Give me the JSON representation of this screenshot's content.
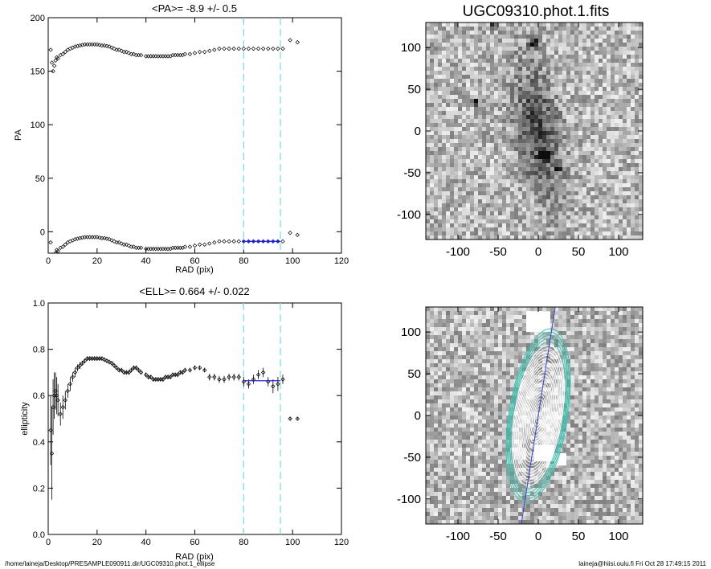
{
  "colors": {
    "marker": "#000000",
    "fit": "#2222cc",
    "dash": "#7fe0e0",
    "ellipse": "#ffffff",
    "ellipse_outer": "#40c0b0",
    "axis_line": "#3344cc"
  },
  "footer": {
    "left": "/home/laineja/Desktop/PRESAMPLE090911.dir/UGC09310.phot.1_ellipse",
    "right": "laineja@hiisi.oulu.fi  Fri Oct 28 17:49:15 2011"
  },
  "chart_data": [
    {
      "type": "scatter",
      "title": "<PA>=  -8.9 +/-   0.5",
      "xlabel": "RAD (pix)",
      "ylabel": "PA",
      "xlim": [
        0,
        120
      ],
      "ylim": [
        -20,
        200
      ],
      "xticks": [
        0,
        20,
        40,
        60,
        80,
        100,
        120
      ],
      "yticks": [
        0,
        50,
        100,
        150,
        200
      ],
      "dashed_x": [
        80,
        95
      ],
      "fit": {
        "x": [
          80,
          95
        ],
        "y": -8.9
      },
      "series": [
        {
          "x": [
            1,
            1.5,
            2,
            2.5,
            3,
            3.5,
            4,
            5,
            6,
            7,
            8,
            9,
            10,
            11,
            12,
            13,
            14,
            15,
            16,
            17,
            18,
            19,
            20,
            21,
            22,
            23,
            24,
            25,
            26,
            27,
            28,
            29,
            30,
            31,
            32,
            33,
            34,
            35,
            36,
            37,
            38,
            40,
            41,
            42,
            43,
            44,
            45,
            46,
            47,
            48,
            49,
            50,
            51,
            52,
            53,
            54,
            55,
            56,
            58,
            60,
            62,
            64,
            66,
            68,
            70,
            72,
            74,
            76,
            78,
            80,
            82,
            84,
            86,
            88,
            90,
            92,
            94,
            96,
            99,
            102
          ],
          "y": [
            170,
            158,
            150,
            155,
            160,
            163,
            162,
            165,
            166,
            168,
            170,
            171,
            172,
            173,
            173.5,
            174,
            174.5,
            175,
            175,
            175,
            175,
            175,
            175,
            174.5,
            174,
            174,
            173.5,
            173,
            172,
            171,
            170,
            170,
            169,
            168,
            168,
            167,
            166,
            166,
            165,
            165,
            165,
            164,
            164,
            164,
            164,
            164,
            164,
            164,
            164,
            164,
            164,
            164,
            165,
            165,
            165,
            165,
            165,
            166,
            166,
            167,
            168,
            168,
            169,
            170,
            171,
            171,
            171,
            171,
            171,
            171,
            171,
            171,
            171,
            171,
            171,
            171,
            171,
            171,
            179,
            177
          ]
        },
        {
          "x": [
            1,
            1.5,
            2,
            2.5,
            3,
            3.5,
            4,
            5,
            6,
            7,
            8,
            9,
            10,
            11,
            12,
            13,
            14,
            15,
            16,
            17,
            18,
            19,
            20,
            21,
            22,
            23,
            24,
            25,
            26,
            27,
            28,
            29,
            30,
            31,
            32,
            33,
            34,
            35,
            36,
            37,
            38,
            40,
            41,
            42,
            43,
            44,
            45,
            46,
            47,
            48,
            49,
            50,
            51,
            52,
            53,
            54,
            55,
            56,
            58,
            60,
            62,
            64,
            66,
            68,
            70,
            72,
            74,
            76,
            78,
            80,
            82,
            84,
            86,
            88,
            90,
            92,
            94,
            96,
            99,
            102
          ],
          "y": [
            -10,
            -22,
            -30,
            -25,
            -20,
            -17,
            -18,
            -15,
            -14,
            -12,
            -10,
            -9,
            -8,
            -7,
            -6.5,
            -6,
            -5.5,
            -5,
            -5,
            -5,
            -5,
            -5,
            -5,
            -5.5,
            -6,
            -6,
            -6.5,
            -7,
            -8,
            -9,
            -10,
            -10,
            -11,
            -12,
            -12,
            -13,
            -14,
            -14,
            -15,
            -15,
            -15,
            -16,
            -16,
            -16,
            -16,
            -16,
            -16,
            -16,
            -16,
            -16,
            -16,
            -16,
            -15,
            -15,
            -15,
            -15,
            -15,
            -14,
            -14,
            -13,
            -12,
            -12,
            -11,
            -10,
            -9,
            -9,
            -9,
            -9,
            -9,
            -9,
            -9,
            -9,
            -9,
            -9,
            -9,
            -9,
            -9,
            -9,
            -1,
            -3
          ]
        }
      ]
    },
    {
      "type": "scatter",
      "title": "<ELL>= 0.664 +/-   0.022",
      "xlabel": "RAD (pix)",
      "ylabel": "ellipticity",
      "xlim": [
        0,
        120
      ],
      "ylim": [
        0,
        1
      ],
      "xticks": [
        0,
        20,
        40,
        60,
        80,
        100,
        120
      ],
      "yticks": [
        0.0,
        0.2,
        0.4,
        0.6,
        0.8,
        1.0
      ],
      "dashed_x": [
        80,
        95
      ],
      "fit": {
        "x": [
          80,
          95
        ],
        "y": 0.664
      },
      "series": [
        {
          "x": [
            1,
            1.5,
            2,
            2.5,
            3,
            3.5,
            4,
            5,
            6,
            7,
            8,
            9,
            10,
            11,
            12,
            13,
            14,
            15,
            16,
            17,
            18,
            19,
            20,
            21,
            22,
            23,
            24,
            25,
            26,
            27,
            28,
            29,
            30,
            31,
            32,
            33,
            34,
            35,
            36,
            37,
            38,
            40,
            41,
            42,
            43,
            44,
            45,
            46,
            47,
            48,
            49,
            50,
            51,
            52,
            53,
            54,
            55,
            56,
            58,
            60,
            62,
            64,
            66,
            68,
            70,
            72,
            74,
            76,
            78,
            80,
            82,
            84,
            86,
            88,
            90,
            92,
            94,
            96,
            99,
            102
          ],
          "y": [
            0.45,
            0.35,
            0.55,
            0.6,
            0.62,
            0.6,
            0.58,
            0.52,
            0.55,
            0.58,
            0.62,
            0.65,
            0.68,
            0.7,
            0.72,
            0.73,
            0.74,
            0.75,
            0.76,
            0.76,
            0.76,
            0.76,
            0.76,
            0.76,
            0.76,
            0.755,
            0.75,
            0.745,
            0.74,
            0.73,
            0.72,
            0.71,
            0.71,
            0.7,
            0.7,
            0.7,
            0.71,
            0.72,
            0.72,
            0.71,
            0.7,
            0.69,
            0.68,
            0.68,
            0.67,
            0.67,
            0.67,
            0.67,
            0.67,
            0.68,
            0.68,
            0.68,
            0.69,
            0.69,
            0.69,
            0.7,
            0.7,
            0.71,
            0.71,
            0.72,
            0.72,
            0.71,
            0.68,
            0.68,
            0.67,
            0.67,
            0.68,
            0.68,
            0.68,
            0.66,
            0.65,
            0.67,
            0.69,
            0.7,
            0.66,
            0.64,
            0.65,
            0.67,
            0.5,
            0.5
          ],
          "err": [
            0.15,
            0.2,
            0.12,
            0.1,
            0.08,
            0.08,
            0.07,
            0.05,
            0.05,
            0.04,
            0.03,
            0.03,
            0.02,
            0.02,
            0.015,
            0.015,
            0.01,
            0.01,
            0.01,
            0.01,
            0.01,
            0.01,
            0.01,
            0.01,
            0.01,
            0.01,
            0.01,
            0.01,
            0.01,
            0.01,
            0.01,
            0.01,
            0.01,
            0.01,
            0.01,
            0.01,
            0.01,
            0.01,
            0.01,
            0.01,
            0.01,
            0.01,
            0.01,
            0.01,
            0.01,
            0.01,
            0.01,
            0.01,
            0.01,
            0.01,
            0.01,
            0.01,
            0.01,
            0.01,
            0.01,
            0.01,
            0.01,
            0.01,
            0.01,
            0.01,
            0.01,
            0.01,
            0.015,
            0.015,
            0.015,
            0.015,
            0.015,
            0.015,
            0.015,
            0.02,
            0.02,
            0.02,
            0.02,
            0.02,
            0.02,
            0.03,
            0.03,
            0.02,
            0.005,
            0.005
          ]
        }
      ]
    },
    {
      "type": "heatmap",
      "title": "UGC09310.phot.1.fits",
      "xlim": [
        -140,
        130
      ],
      "ylim": [
        -130,
        130
      ],
      "xticks": [
        -100,
        -50,
        0,
        50,
        100
      ],
      "yticks": [
        -100,
        -50,
        0,
        50,
        100
      ],
      "stars": [
        {
          "x": -5,
          "y": 105,
          "r": 6
        },
        {
          "x": 8,
          "y": -30,
          "r": 6
        },
        {
          "x": 25,
          "y": -45,
          "r": 4
        },
        {
          "x": -78,
          "y": 35,
          "r": 4
        },
        {
          "x": -55,
          "y": 125,
          "r": 4
        }
      ]
    },
    {
      "type": "heatmap",
      "xlim": [
        -140,
        130
      ],
      "ylim": [
        -130,
        130
      ],
      "xticks": [
        -100,
        -50,
        0,
        50,
        100
      ],
      "yticks": [
        -100,
        -50,
        0,
        50,
        100
      ],
      "ellipses_pa_deg": -8.9,
      "ellipses_ell": 0.664
    }
  ]
}
